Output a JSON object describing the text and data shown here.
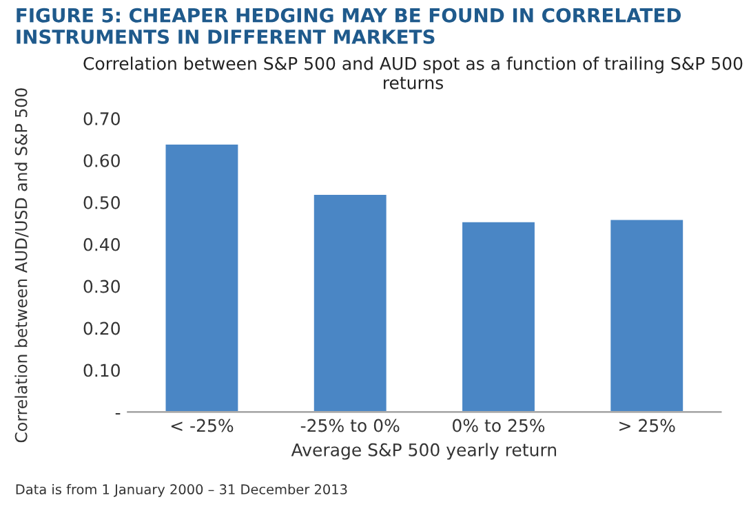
{
  "chart_data": {
    "type": "bar",
    "title": "FIGURE 5: CHEAPER HEDGING MAY BE FOUND IN CORRELATED INSTRUMENTS IN DIFFERENT MARKETS",
    "subtitle": "Correlation between S&P 500 and AUD spot as a function of trailing S&P 500 returns",
    "xlabel": "Average S&P 500 yearly return",
    "ylabel": "Correlation between AUD/USD and S&P 500",
    "categories": [
      "< -25%",
      "-25% to 0%",
      "0% to 25%",
      "> 25%"
    ],
    "values": [
      0.64,
      0.52,
      0.455,
      0.46
    ],
    "color": "#4a86c5",
    "ylim": [
      0,
      0.7
    ],
    "yticks": [
      {
        "value": 0,
        "label": "-"
      },
      {
        "value": 0.1,
        "label": "0.10"
      },
      {
        "value": 0.2,
        "label": "0.20"
      },
      {
        "value": 0.3,
        "label": "0.30"
      },
      {
        "value": 0.4,
        "label": "0.40"
      },
      {
        "value": 0.5,
        "label": "0.50"
      },
      {
        "value": 0.6,
        "label": "0.60"
      },
      {
        "value": 0.7,
        "label": "0.70"
      }
    ],
    "grid": false,
    "annotations": [
      "Data is from 1 January 2000 – 31 December 2013"
    ]
  }
}
